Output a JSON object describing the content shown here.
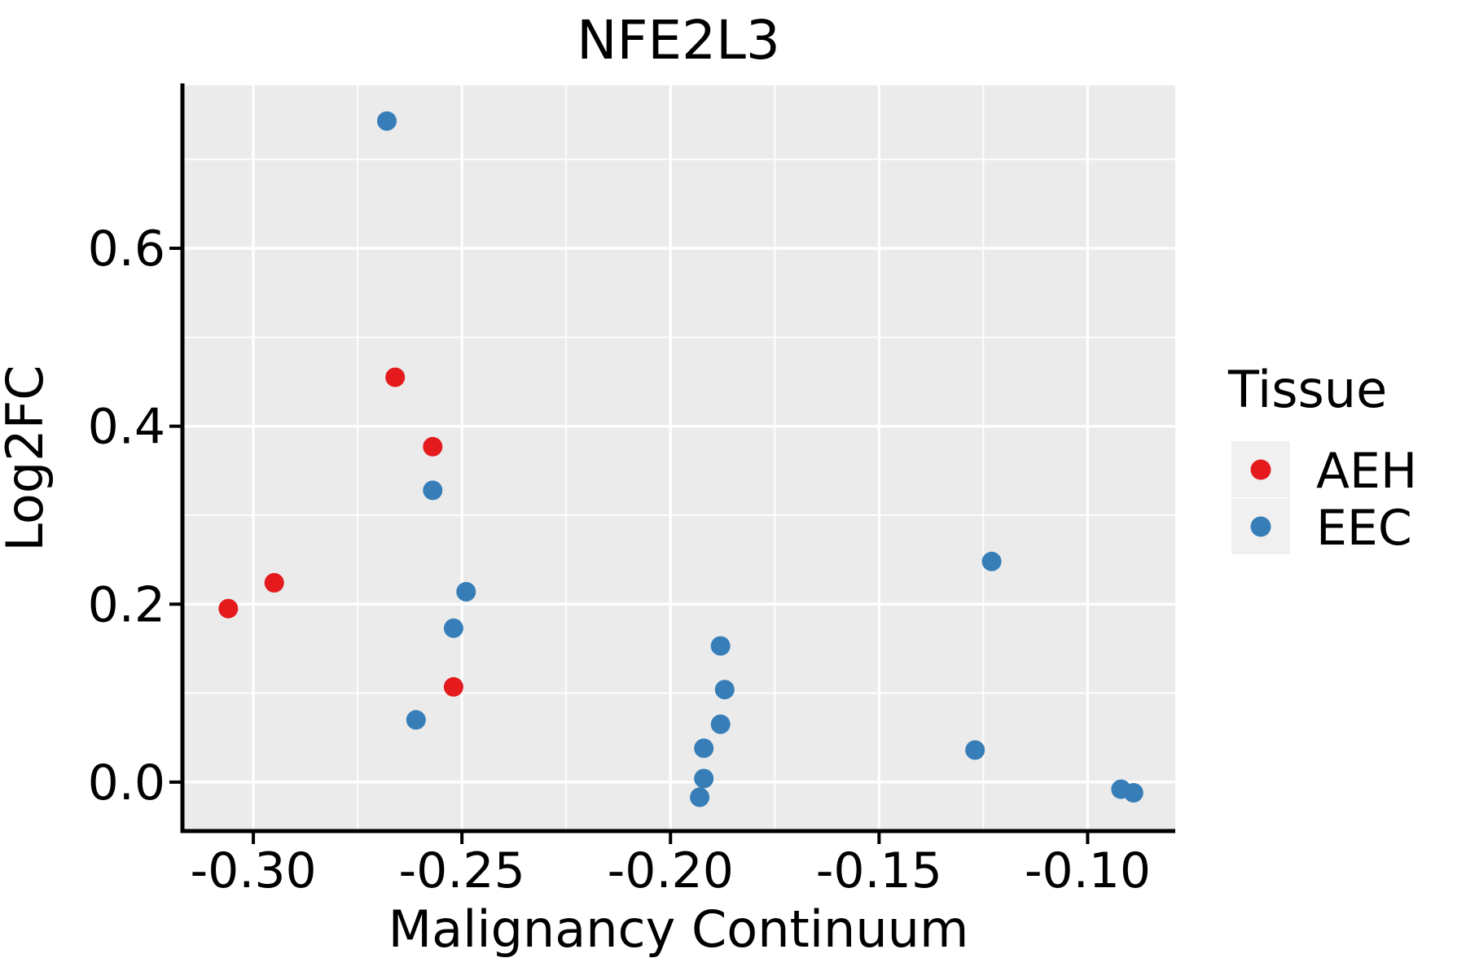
{
  "title": "NFE2L3",
  "axes": {
    "x": {
      "label": "Malignancy Continuum",
      "ticks": [
        {
          "value": -0.3,
          "label": "-0.30"
        },
        {
          "value": -0.25,
          "label": "-0.25"
        },
        {
          "value": -0.2,
          "label": "-0.20"
        },
        {
          "value": -0.15,
          "label": "-0.15"
        },
        {
          "value": -0.1,
          "label": "-0.10"
        }
      ],
      "minor_ticks": [
        -0.275,
        -0.225,
        -0.175,
        -0.125
      ]
    },
    "y": {
      "label": "Log2FC",
      "ticks": [
        {
          "value": 0.0,
          "label": "0.0"
        },
        {
          "value": 0.2,
          "label": "0.2"
        },
        {
          "value": 0.4,
          "label": "0.4"
        },
        {
          "value": 0.6,
          "label": "0.6"
        }
      ],
      "minor_ticks": [
        0.1,
        0.3,
        0.5,
        0.7
      ]
    }
  },
  "legend": {
    "title": "Tissue",
    "entries": [
      {
        "label": "AEH",
        "color": "#E41A1C"
      },
      {
        "label": "EEC",
        "color": "#377EB8"
      }
    ]
  },
  "colors": {
    "panel_background": "#EBEBEB",
    "gridline": "#FFFFFF",
    "axis_line": "#000000",
    "legend_key_background": "#F0F0F0",
    "aeh_red": "#E41A1C",
    "eec_blue": "#377EB8"
  },
  "chart_data": {
    "type": "scatter",
    "title": "NFE2L3",
    "xlabel": "Malignancy Continuum",
    "ylabel": "Log2FC",
    "xlim": [
      -0.317,
      -0.079
    ],
    "ylim": [
      -0.055,
      0.783
    ],
    "grid": "major-and-minor",
    "legend_position": "right",
    "series": [
      {
        "name": "AEH",
        "color": "#E41A1C",
        "points": [
          [
            -0.306,
            0.195
          ],
          [
            -0.295,
            0.224
          ],
          [
            -0.266,
            0.455
          ],
          [
            -0.257,
            0.377
          ],
          [
            -0.252,
            0.107
          ]
        ]
      },
      {
        "name": "EEC",
        "color": "#377EB8",
        "points": [
          [
            -0.268,
            0.743
          ],
          [
            -0.257,
            0.328
          ],
          [
            -0.249,
            0.214
          ],
          [
            -0.252,
            0.173
          ],
          [
            -0.261,
            0.07
          ],
          [
            -0.188,
            0.153
          ],
          [
            -0.187,
            0.104
          ],
          [
            -0.188,
            0.065
          ],
          [
            -0.192,
            0.038
          ],
          [
            -0.192,
            0.004
          ],
          [
            -0.193,
            -0.017
          ],
          [
            -0.123,
            0.248
          ],
          [
            -0.127,
            0.036
          ],
          [
            -0.092,
            -0.008
          ],
          [
            -0.089,
            -0.012
          ]
        ]
      }
    ]
  }
}
